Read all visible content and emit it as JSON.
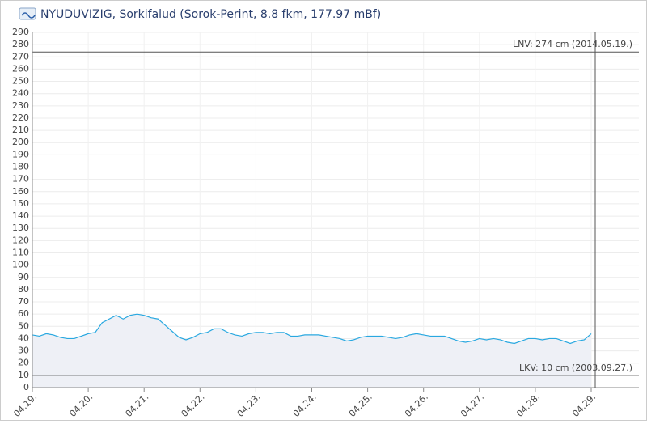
{
  "chart_data": {
    "type": "area",
    "title": "NYUDUVIZIG, Sorkifalud (Sorok-Perint, 8.8 fkm, 177.97 mBf)",
    "categories": [
      "04.19.",
      null,
      null,
      null,
      null,
      null,
      null,
      null,
      "04.20.",
      null,
      null,
      null,
      null,
      null,
      null,
      null,
      "04.21.",
      null,
      null,
      null,
      null,
      null,
      null,
      null,
      "04.22.",
      null,
      null,
      null,
      null,
      null,
      null,
      null,
      "04.23.",
      null,
      null,
      null,
      null,
      null,
      null,
      null,
      "04.24.",
      null,
      null,
      null,
      null,
      null,
      null,
      null,
      "04.25.",
      null,
      null,
      null,
      null,
      null,
      null,
      null,
      "04.26.",
      null,
      null,
      null,
      null,
      null,
      null,
      null,
      "04.27.",
      null,
      null,
      null,
      null,
      null,
      null,
      null,
      "04.28.",
      null,
      null,
      null,
      null,
      null,
      null,
      null,
      "04.29."
    ],
    "values": [
      43,
      42,
      44,
      43,
      41,
      40,
      40,
      42,
      44,
      45,
      53,
      56,
      59,
      56,
      59,
      60,
      59,
      57,
      56,
      51,
      46,
      41,
      39,
      41,
      44,
      45,
      48,
      48,
      45,
      43,
      42,
      44,
      45,
      45,
      44,
      45,
      45,
      42,
      42,
      43,
      43,
      43,
      42,
      41,
      40,
      38,
      39,
      41,
      42,
      42,
      42,
      41,
      40,
      41,
      43,
      44,
      43,
      42,
      42,
      42,
      40,
      38,
      37,
      38,
      40,
      39,
      40,
      39,
      37,
      36,
      38,
      40,
      40,
      39,
      40,
      40,
      38,
      36,
      38,
      39,
      44
    ],
    "color": "#29a8e0",
    "fill": "#eef0f6",
    "ylim": [
      0,
      290
    ],
    "yticks": [
      0,
      10,
      20,
      30,
      40,
      50,
      60,
      70,
      80,
      90,
      100,
      110,
      120,
      130,
      140,
      150,
      160,
      170,
      180,
      190,
      200,
      210,
      220,
      230,
      240,
      250,
      260,
      270,
      280,
      290
    ],
    "grid": true,
    "annotations": [
      {
        "label": "LNV: 274 cm (2014.05.19.)",
        "value": 274
      },
      {
        "label": "LKV: 10 cm (2003.09.27.)",
        "value": 10
      }
    ]
  }
}
